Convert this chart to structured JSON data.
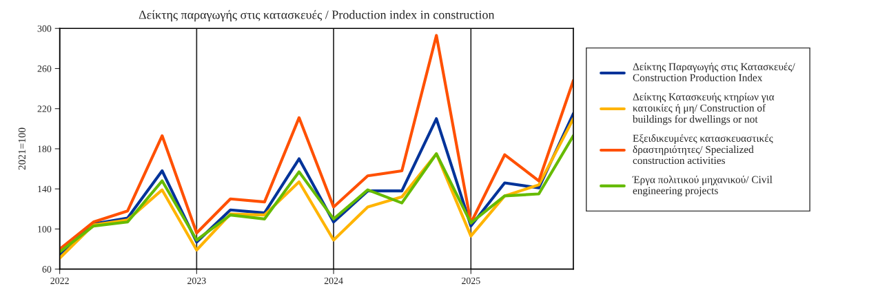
{
  "chart_data": {
    "type": "line",
    "title": "Δείκτης παραγωγής στις κατασκευές / Production index in construction",
    "ylabel": "2021=100",
    "x": [
      "2022-01",
      "2022-04",
      "2022-07",
      "2022-10",
      "2023-01",
      "2023-04",
      "2023-07",
      "2023-10",
      "2024-01",
      "2024-04",
      "2024-07",
      "2024-10",
      "2025-01",
      "2025-04",
      "2025-07",
      "2025-10"
    ],
    "series": [
      {
        "name": "Δείκτης Παραγωγής στις Κατασκευές/\nConstruction Production Index",
        "color": "#003399",
        "values": [
          75,
          105,
          111,
          158,
          87,
          119,
          116,
          170,
          107,
          138,
          138,
          210,
          103,
          146,
          141,
          215
        ]
      },
      {
        "name": "Δείκτης Κατασκευής κτηρίων για\nκατοικίες ή μη/ Construction of\nbuildings for dwellings or not",
        "color": "#ffb400",
        "values": [
          71,
          104,
          109,
          139,
          79,
          115,
          114,
          147,
          89,
          122,
          132,
          175,
          93,
          133,
          144,
          210
        ]
      },
      {
        "name": "Εξειδικευμένες κατασκευαστικές\nδραστηριότητες/ Specialized\nconstruction activities",
        "color": "#ff5000",
        "values": [
          80,
          107,
          118,
          193,
          96,
          130,
          127,
          211,
          122,
          153,
          158,
          293,
          106,
          174,
          148,
          248
        ]
      },
      {
        "name": "Έργα πολιτικού μηχανικού/ Civil\nengineering projects",
        "color": "#66bb00",
        "values": [
          77,
          103,
          107,
          148,
          89,
          114,
          110,
          157,
          110,
          139,
          126,
          175,
          106,
          133,
          135,
          193
        ]
      }
    ],
    "xlim": [
      "2022-01",
      "2025-10"
    ],
    "xticks": [
      {
        "value": "2022-01",
        "label": "2022"
      },
      {
        "value": "2023-01",
        "label": "2023"
      },
      {
        "value": "2024-01",
        "label": "2024"
      },
      {
        "value": "2025-01",
        "label": "2025"
      }
    ],
    "ylim": [
      60,
      300
    ],
    "yticks": [
      60,
      100,
      140,
      180,
      220,
      260,
      300
    ],
    "grid": "x",
    "legend": "right",
    "marker": "none",
    "line_style": "solid"
  }
}
